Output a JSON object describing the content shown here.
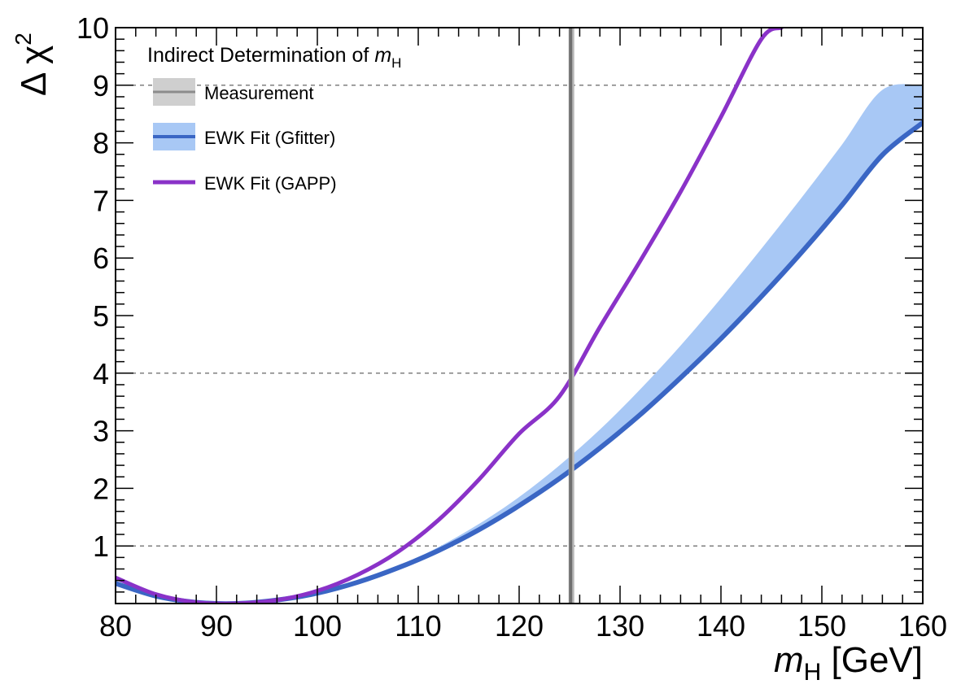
{
  "chart_data": {
    "type": "line",
    "xlabel": {
      "symbol": "m",
      "subscript": "H",
      "unit": "[GeV]"
    },
    "ylabel": {
      "symbol": "Δ χ",
      "superscript": "2"
    },
    "xlim": [
      80,
      160
    ],
    "ylim": [
      0,
      10
    ],
    "x_ticks": [
      80,
      90,
      100,
      110,
      120,
      130,
      140,
      150,
      160
    ],
    "y_ticks": [
      1,
      2,
      3,
      4,
      5,
      6,
      7,
      8,
      9,
      10
    ],
    "reference_lines_y": [
      1,
      4,
      9
    ],
    "legend": {
      "title": {
        "text": "Indirect Determination of",
        "symbol": "m",
        "subscript": "H"
      },
      "entries": [
        {
          "label": "Measurement",
          "color": "#8c8c8c",
          "band_color": "#cfcfcf"
        },
        {
          "label": "EWK Fit (Gfitter)",
          "color": "#3a66c4",
          "band_color": "#a8c8f5"
        },
        {
          "label": "EWK Fit (GAPP)",
          "color": "#8a32c8"
        }
      ]
    },
    "series": [
      {
        "name": "Measurement",
        "kind": "vertical_band",
        "x": 125.1,
        "x_low": 124.9,
        "x_high": 125.3,
        "color": "#707070",
        "band_color": "#b8b8b8"
      },
      {
        "name": "EWK Fit (Gfitter)",
        "kind": "line_with_band",
        "color": "#3a66c4",
        "band_color": "#a8c8f5",
        "x": [
          80,
          84,
          88,
          92,
          96,
          100,
          104,
          108,
          112,
          116,
          120,
          124,
          128,
          132,
          136,
          140,
          144,
          148,
          152,
          156,
          160
        ],
        "y": [
          0.35,
          0.13,
          0.02,
          0.0,
          0.06,
          0.18,
          0.37,
          0.62,
          0.92,
          1.28,
          1.7,
          2.17,
          2.7,
          3.28,
          3.92,
          4.6,
          5.33,
          6.1,
          6.92,
          7.79,
          8.35
        ],
        "y_upper": [
          0.35,
          0.13,
          0.02,
          0.0,
          0.06,
          0.18,
          0.38,
          0.65,
          0.98,
          1.38,
          1.85,
          2.4,
          3.02,
          3.72,
          4.48,
          5.3,
          6.16,
          7.05,
          7.97,
          8.92,
          9.0
        ]
      },
      {
        "name": "EWK Fit (GAPP)",
        "kind": "line",
        "color": "#8a32c8",
        "x": [
          80,
          84,
          88,
          92,
          96,
          100,
          104,
          108,
          112,
          116,
          120,
          124,
          128,
          132,
          136,
          140,
          144,
          146
        ],
        "y": [
          0.45,
          0.16,
          0.02,
          0.0,
          0.06,
          0.22,
          0.5,
          0.9,
          1.45,
          2.15,
          2.95,
          3.6,
          4.8,
          5.95,
          7.15,
          8.45,
          9.8,
          10.0
        ]
      }
    ]
  }
}
